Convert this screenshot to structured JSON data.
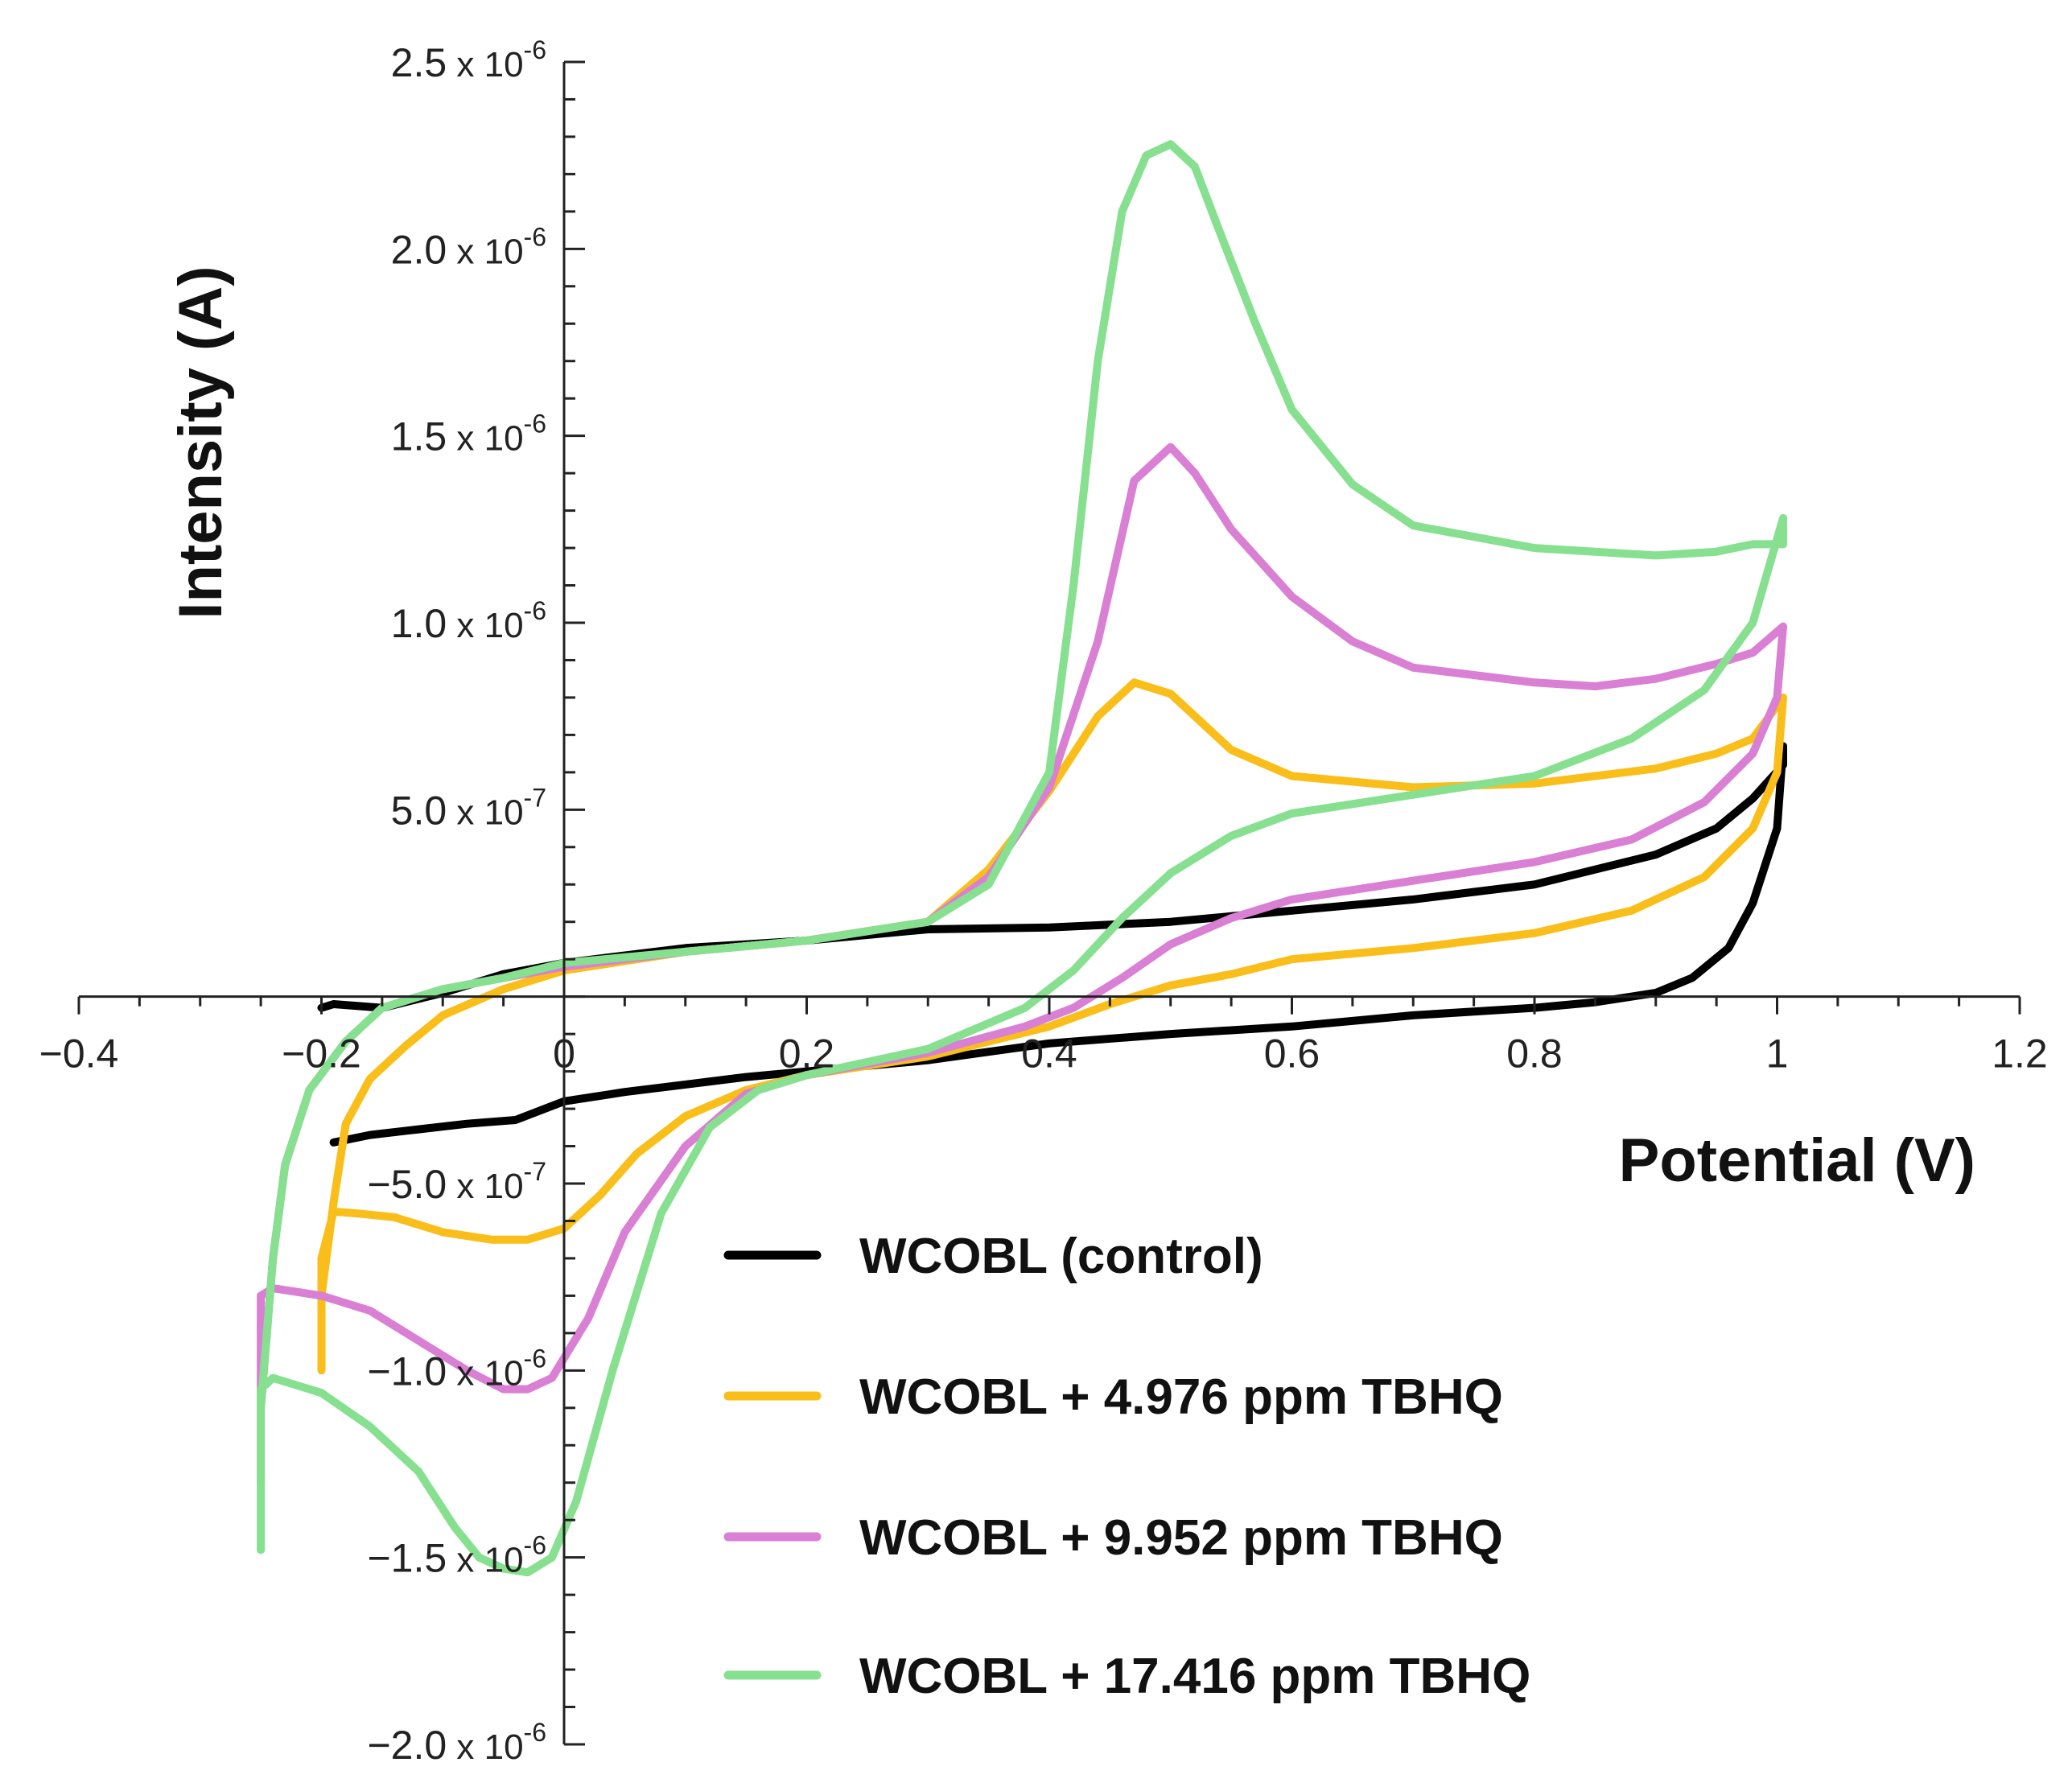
{
  "chart_data": {
    "type": "line",
    "title": "",
    "xlabel": "Potential (V)",
    "ylabel": "Intensity (A)",
    "xlim": [
      -0.4,
      1.2
    ],
    "ylim": [
      -2e-06,
      2.5e-06
    ],
    "grid": false,
    "legend_position": "bottom-right",
    "x_ticks": [
      {
        "value": -0.4,
        "label": "−0.4"
      },
      {
        "value": -0.2,
        "label": "−0.2"
      },
      {
        "value": 0,
        "label": "0"
      },
      {
        "value": 0.2,
        "label": "0.2"
      },
      {
        "value": 0.4,
        "label": "0.4"
      },
      {
        "value": 0.6,
        "label": "0.6"
      },
      {
        "value": 0.8,
        "label": "0.8"
      },
      {
        "value": 1,
        "label": "1"
      },
      {
        "value": 1.2,
        "label": "1.2"
      }
    ],
    "y_ticks": [
      {
        "value": 2.5e-06,
        "mantissa": "2.5",
        "exponent": "-6"
      },
      {
        "value": 2e-06,
        "mantissa": "2.0",
        "exponent": "-6"
      },
      {
        "value": 1.5e-06,
        "mantissa": "1.5",
        "exponent": "-6"
      },
      {
        "value": 1e-06,
        "mantissa": "1.0",
        "exponent": "-6"
      },
      {
        "value": 5e-07,
        "mantissa": "5.0",
        "exponent": "-7"
      },
      {
        "value": -5e-07,
        "mantissa": "−5.0",
        "exponent": "-7"
      },
      {
        "value": -1e-06,
        "mantissa": "−1.0",
        "exponent": "-6"
      },
      {
        "value": -1.5e-06,
        "mantissa": "−1.5",
        "exponent": "-6"
      },
      {
        "value": -2e-06,
        "mantissa": "−2.0",
        "exponent": "-6"
      }
    ],
    "tick_times": "x 10",
    "series": [
      {
        "name": "WCOBL (control)",
        "color": "#000000",
        "x": [
          -0.19,
          -0.16,
          -0.12,
          -0.08,
          -0.04,
          0,
          0.05,
          0.1,
          0.15,
          0.2,
          0.3,
          0.4,
          0.5,
          0.6,
          0.7,
          0.8,
          0.85,
          0.9,
          0.93,
          0.96,
          0.98,
          1.0,
          1.005,
          1.005,
          0.98,
          0.95,
          0.9,
          0.85,
          0.8,
          0.7,
          0.6,
          0.5,
          0.4,
          0.3,
          0.2,
          0.1,
          0,
          -0.05,
          -0.1,
          -0.15,
          -0.19,
          -0.2
        ],
        "y": [
          -3.9e-07,
          -3.7e-07,
          -3.55e-07,
          -3.4e-07,
          -3.3e-07,
          -2.8e-07,
          -2.55e-07,
          -2.35e-07,
          -2.15e-07,
          -2e-07,
          -1.7e-07,
          -1.25e-07,
          -1e-07,
          -8e-08,
          -5e-08,
          -3e-08,
          -1.5e-08,
          1e-08,
          5e-08,
          1.3e-07,
          2.5e-07,
          4.5e-07,
          6.7e-07,
          6.2e-07,
          5.3e-07,
          4.5e-07,
          3.8e-07,
          3.4e-07,
          3e-07,
          2.6e-07,
          2.3e-07,
          2e-07,
          1.85e-07,
          1.8e-07,
          1.5e-07,
          1.3e-07,
          9e-08,
          6e-08,
          1e-08,
          -3e-08,
          -2e-08,
          -3e-08
        ]
      },
      {
        "name": "WCOBL + 4.976 ppm TBHQ",
        "color": "#F9BE1A",
        "x": [
          -0.2,
          -0.2,
          -0.19,
          -0.17,
          -0.14,
          -0.1,
          -0.06,
          -0.03,
          0,
          0.03,
          0.06,
          0.1,
          0.15,
          0.2,
          0.3,
          0.4,
          0.45,
          0.5,
          0.55,
          0.6,
          0.7,
          0.8,
          0.88,
          0.94,
          0.98,
          1.0,
          1.005,
          0.98,
          0.95,
          0.9,
          0.8,
          0.7,
          0.6,
          0.55,
          0.5,
          0.47,
          0.44,
          0.4,
          0.35,
          0.3,
          0.2,
          0.1,
          0,
          -0.05,
          -0.1,
          -0.13,
          -0.16,
          -0.18,
          -0.19,
          -0.2
        ],
        "y": [
          -1e-06,
          -7e-07,
          -5.75e-07,
          -5.8e-07,
          -5.9e-07,
          -6.3e-07,
          -6.5e-07,
          -6.5e-07,
          -6.2e-07,
          -5.3e-07,
          -4.2e-07,
          -3.2e-07,
          -2.5e-07,
          -2.1e-07,
          -1.6e-07,
          -8e-08,
          -2e-08,
          3e-08,
          6e-08,
          1e-07,
          1.3e-07,
          1.7e-07,
          2.3e-07,
          3.2e-07,
          4.5e-07,
          6e-07,
          8e-07,
          6.9e-07,
          6.5e-07,
          6.1e-07,
          5.7e-07,
          5.6e-07,
          5.9e-07,
          6.6e-07,
          8.1e-07,
          8.4e-07,
          7.5e-07,
          5.5e-07,
          3.4e-07,
          2e-07,
          1.5e-07,
          1.2e-07,
          7e-08,
          2e-08,
          -5e-08,
          -1.3e-07,
          -2.2e-07,
          -3.4e-07,
          -5.5e-07,
          -8e-07
        ]
      },
      {
        "name": "WCOBL + 9.952 ppm TBHQ",
        "color": "#D97FD4",
        "x": [
          -0.25,
          -0.25,
          -0.24,
          -0.2,
          -0.16,
          -0.12,
          -0.08,
          -0.05,
          -0.03,
          -0.01,
          0.02,
          0.05,
          0.1,
          0.15,
          0.2,
          0.3,
          0.38,
          0.42,
          0.46,
          0.5,
          0.55,
          0.6,
          0.7,
          0.8,
          0.88,
          0.94,
          0.98,
          1.0,
          1.005,
          0.98,
          0.95,
          0.9,
          0.85,
          0.8,
          0.7,
          0.65,
          0.6,
          0.55,
          0.52,
          0.5,
          0.47,
          0.44,
          0.4,
          0.35,
          0.3,
          0.2,
          0.1,
          0,
          -0.05,
          -0.1,
          -0.15,
          -0.18,
          -0.21,
          -0.23,
          -0.24,
          -0.25
        ],
        "y": [
          -1.3e-06,
          -8e-07,
          -7.8e-07,
          -8e-07,
          -8.4e-07,
          -9.2e-07,
          -1e-06,
          -1.05e-06,
          -1.05e-06,
          -1.02e-06,
          -8.6e-07,
          -6.3e-07,
          -4e-07,
          -2.6e-07,
          -2.1e-07,
          -1.5e-07,
          -8e-08,
          -3e-08,
          5e-08,
          1.4e-07,
          2.1e-07,
          2.6e-07,
          3.1e-07,
          3.6e-07,
          4.2e-07,
          5.2e-07,
          6.5e-07,
          8e-07,
          9.9e-07,
          9.2e-07,
          8.9e-07,
          8.5e-07,
          8.3e-07,
          8.4e-07,
          8.8e-07,
          9.5e-07,
          1.07e-06,
          1.25e-06,
          1.4e-06,
          1.47e-06,
          1.38e-06,
          9.5e-07,
          5.6e-07,
          3.2e-07,
          2e-07,
          1.5e-07,
          1.2e-07,
          8e-08,
          5e-08,
          2e-08,
          -3e-08,
          -1.2e-07,
          -2.5e-07,
          -4.5e-07,
          -7e-07,
          -1.1e-06
        ]
      },
      {
        "name": "WCOBL + 17.416 ppm TBHQ",
        "color": "#86E08F",
        "x": [
          -0.25,
          -0.25,
          -0.24,
          -0.2,
          -0.16,
          -0.12,
          -0.09,
          -0.07,
          -0.05,
          -0.03,
          -0.01,
          0.01,
          0.04,
          0.08,
          0.12,
          0.16,
          0.2,
          0.3,
          0.38,
          0.42,
          0.46,
          0.5,
          0.55,
          0.6,
          0.7,
          0.8,
          0.88,
          0.94,
          0.98,
          1.005,
          1.005,
          0.98,
          0.95,
          0.9,
          0.85,
          0.8,
          0.7,
          0.65,
          0.6,
          0.57,
          0.54,
          0.52,
          0.5,
          0.48,
          0.46,
          0.44,
          0.42,
          0.4,
          0.35,
          0.3,
          0.2,
          0.1,
          0,
          -0.05,
          -0.1,
          -0.15,
          -0.18,
          -0.21,
          -0.23,
          -0.24,
          -0.25
        ],
        "y": [
          -1.48e-06,
          -1.05e-06,
          -1.02e-06,
          -1.06e-06,
          -1.15e-06,
          -1.27e-06,
          -1.42e-06,
          -1.5e-06,
          -1.53e-06,
          -1.54e-06,
          -1.5e-06,
          -1.35e-06,
          -1e-06,
          -5.8e-07,
          -3.5e-07,
          -2.5e-07,
          -2.1e-07,
          -1.4e-07,
          -3e-08,
          7e-08,
          2.1e-07,
          3.3e-07,
          4.3e-07,
          4.9e-07,
          5.4e-07,
          5.9e-07,
          6.9e-07,
          8.2e-07,
          1e-06,
          1.28e-06,
          1.21e-06,
          1.21e-06,
          1.19e-06,
          1.18e-06,
          1.19e-06,
          1.2e-06,
          1.26e-06,
          1.37e-06,
          1.57e-06,
          1.8e-06,
          2.05e-06,
          2.22e-06,
          2.28e-06,
          2.25e-06,
          2.1e-06,
          1.7e-06,
          1.1e-06,
          6e-07,
          3e-07,
          2e-07,
          1.5e-07,
          1.2e-07,
          9e-08,
          5e-08,
          2e-08,
          -3e-08,
          -1.2e-07,
          -2.5e-07,
          -4.5e-07,
          -7e-07,
          -1.1e-06
        ]
      }
    ]
  }
}
